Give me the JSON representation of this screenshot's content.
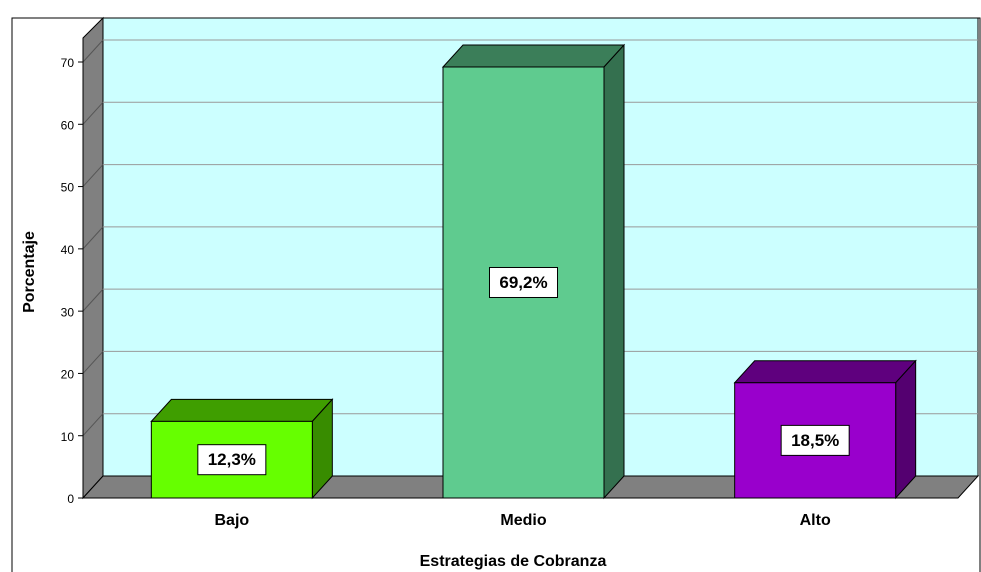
{
  "chart_data": {
    "type": "bar3d",
    "xlabel": "Estrategias de Cobranza",
    "ylabel": "Porcentaje",
    "categories": [
      "Bajo",
      "Medio",
      "Alto"
    ],
    "values": [
      12.3,
      69.2,
      18.5
    ],
    "value_labels": [
      "12,3%",
      "69,2%",
      "18,5%"
    ],
    "colors": [
      "#66ff00",
      "#5fcb8f",
      "#9900cc"
    ],
    "ylim": [
      0,
      70
    ],
    "yticks": [
      0,
      10,
      20,
      30,
      40,
      50,
      60,
      70
    ],
    "grid": true
  }
}
